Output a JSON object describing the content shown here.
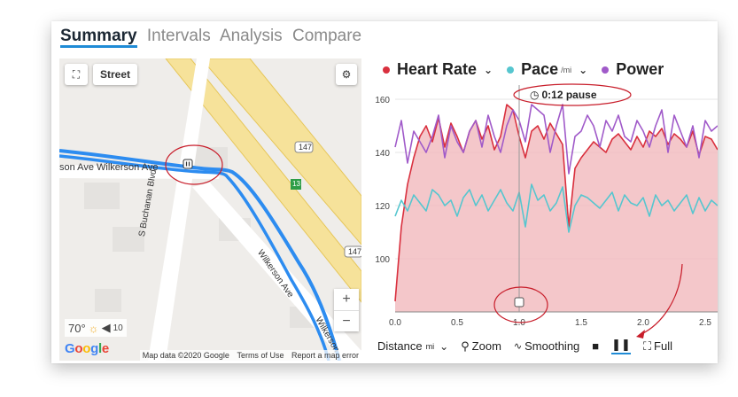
{
  "tabs": [
    {
      "label": "Summary",
      "active": true
    },
    {
      "label": "Intervals",
      "active": false
    },
    {
      "label": "Analysis",
      "active": false
    },
    {
      "label": "Compare",
      "active": false
    }
  ],
  "map": {
    "map_type_label": "Street",
    "road_labels": {
      "wilkerson_ave_top": "son Ave  Wilkerson Ave",
      "buchanan": "S Buchanan Blvd",
      "wilkerson_diag": "Wilkerson Ave",
      "wilkerson_low": "Wilkerson"
    },
    "shields": [
      "147",
      "147",
      "13"
    ],
    "weather": {
      "temp": "70°",
      "wind": "10"
    },
    "google_logo": "Google",
    "footer": {
      "map_data": "Map data ©2020 Google",
      "terms": "Terms of Use",
      "report": "Report a map error"
    },
    "zoom_in": "+",
    "zoom_out": "−"
  },
  "chart": {
    "legend": [
      {
        "label": "Heart Rate",
        "unit": "",
        "color": "#d9303e"
      },
      {
        "label": "Pace",
        "unit": "/mi",
        "color": "#56c6cf"
      },
      {
        "label": "Power",
        "unit": "",
        "color": "#a05ac9"
      }
    ],
    "pause_label": "0:12 pause",
    "toolbar": {
      "distance_label": "Distance",
      "distance_unit": "mi",
      "zoom_label": "Zoom",
      "smoothing_label": "Smoothing",
      "full_label": "Full"
    }
  },
  "chart_data": {
    "type": "area",
    "x": [
      0.0,
      0.05,
      0.1,
      0.15,
      0.2,
      0.25,
      0.3,
      0.35,
      0.4,
      0.45,
      0.5,
      0.55,
      0.6,
      0.65,
      0.7,
      0.75,
      0.8,
      0.85,
      0.9,
      0.95,
      1.0,
      1.05,
      1.1,
      1.15,
      1.2,
      1.25,
      1.3,
      1.35,
      1.4,
      1.45,
      1.5,
      1.55,
      1.6,
      1.65,
      1.7,
      1.75,
      1.8,
      1.85,
      1.9,
      1.95,
      2.0,
      2.05,
      2.1,
      2.15,
      2.2,
      2.25,
      2.3,
      2.35,
      2.4,
      2.45,
      2.5,
      2.55,
      2.6
    ],
    "x_ticks": [
      "0.0",
      "0.5",
      "1.0",
      "1.5",
      "2.0",
      "2.5"
    ],
    "y_ticks": [
      "100",
      "120",
      "140",
      "160"
    ],
    "ylim": [
      80,
      164
    ],
    "xlim": [
      0.0,
      2.6
    ],
    "series": [
      {
        "name": "Heart Rate",
        "color": "#d9303e",
        "fill": "#f1b9bd",
        "values": [
          84,
          112,
          128,
          138,
          146,
          150,
          144,
          153,
          142,
          151,
          146,
          140,
          148,
          152,
          145,
          150,
          141,
          146,
          158,
          156,
          146,
          138,
          148,
          150,
          145,
          151,
          147,
          143,
          112,
          134,
          138,
          141,
          144,
          142,
          140,
          145,
          147,
          144,
          141,
          146,
          142,
          148,
          146,
          149,
          143,
          147,
          145,
          142,
          148,
          139,
          146,
          145,
          141
        ]
      },
      {
        "name": "Pace",
        "color": "#56c6cf",
        "values": [
          116,
          122,
          118,
          124,
          121,
          118,
          126,
          124,
          120,
          122,
          116,
          123,
          126,
          120,
          124,
          118,
          122,
          126,
          121,
          118,
          125,
          112,
          128,
          122,
          124,
          118,
          121,
          127,
          110,
          120,
          124,
          123,
          121,
          119,
          122,
          125,
          118,
          124,
          121,
          120,
          123,
          116,
          124,
          120,
          122,
          118,
          121,
          124,
          117,
          123,
          118,
          122,
          120
        ]
      },
      {
        "name": "Power",
        "color": "#a05ac9",
        "values": [
          142,
          152,
          136,
          148,
          144,
          140,
          146,
          154,
          138,
          150,
          144,
          140,
          148,
          152,
          142,
          154,
          146,
          140,
          150,
          156,
          152,
          144,
          158,
          156,
          154,
          140,
          150,
          158,
          132,
          146,
          148,
          154,
          150,
          142,
          152,
          148,
          154,
          146,
          144,
          152,
          148,
          142,
          150,
          156,
          140,
          154,
          148,
          142,
          150,
          138,
          152,
          148,
          150
        ]
      }
    ]
  }
}
